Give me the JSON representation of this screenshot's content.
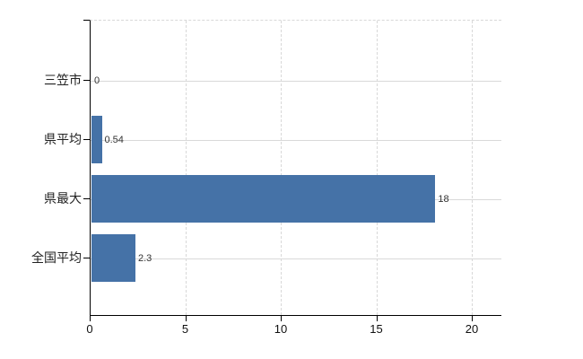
{
  "chart_data": {
    "type": "bar",
    "orientation": "horizontal",
    "title": "",
    "xlabel": "",
    "ylabel": "",
    "categories": [
      "三笠市",
      "県平均",
      "県最大",
      "全国平均"
    ],
    "values": [
      0,
      0.54,
      18,
      2.3
    ],
    "value_labels": [
      "0",
      "0.54",
      "18",
      "2.3"
    ],
    "xticks": [
      0,
      5,
      10,
      15,
      20
    ],
    "xtick_labels": [
      "0",
      "5",
      "10",
      "15",
      "20"
    ],
    "xlim": [
      0,
      21.6
    ],
    "grid": true,
    "legend": false,
    "bar_color": "#4572a7",
    "gridline_color": "#d8d8d8",
    "axis_color": "#000000",
    "value_label_color": "#333333",
    "background_color": "#ffffff"
  }
}
